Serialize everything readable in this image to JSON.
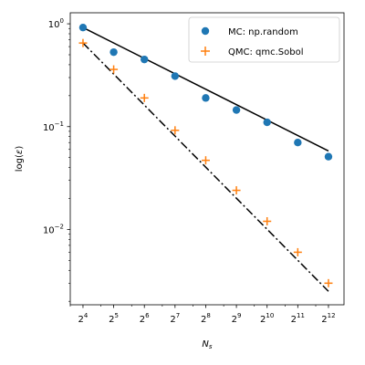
{
  "chart_data": {
    "type": "scatter",
    "title": "",
    "xlabel": "N",
    "xlabel_subscript": "s",
    "ylabel_prefix": "log(",
    "ylabel_symbol": "ε",
    "ylabel_suffix": ")",
    "x_scale": "log2",
    "y_scale": "log10",
    "xlim": [
      12.0,
      5820.0
    ],
    "ylim": [
      0.00185,
      1.28
    ],
    "grid": false,
    "legend_position": "top-right",
    "x_ticks": [
      {
        "base": "2",
        "exp": "4",
        "value": 16
      },
      {
        "base": "2",
        "exp": "5",
        "value": 32
      },
      {
        "base": "2",
        "exp": "6",
        "value": 64
      },
      {
        "base": "2",
        "exp": "7",
        "value": 128
      },
      {
        "base": "2",
        "exp": "8",
        "value": 256
      },
      {
        "base": "2",
        "exp": "9",
        "value": 512
      },
      {
        "base": "2",
        "exp": "10",
        "value": 1024
      },
      {
        "base": "2",
        "exp": "11",
        "value": 2048
      },
      {
        "base": "2",
        "exp": "12",
        "value": 4096
      }
    ],
    "y_ticks": [
      {
        "base": "10",
        "exp": "0",
        "value": 1
      },
      {
        "base": "10",
        "exp": "−1",
        "value": 0.1
      },
      {
        "base": "10",
        "exp": "−2",
        "value": 0.01
      }
    ],
    "series": [
      {
        "name": "MC: np.random",
        "marker": "circle",
        "color": "#1f77b4",
        "x": [
          16,
          32,
          64,
          128,
          256,
          512,
          1024,
          2048,
          4096
        ],
        "y": [
          0.92,
          0.53,
          0.45,
          0.31,
          0.19,
          0.145,
          0.11,
          0.07,
          0.051
        ]
      },
      {
        "name": "QMC: qmc.Sobol",
        "marker": "plus",
        "color": "#ff7f0e",
        "x": [
          16,
          32,
          64,
          128,
          256,
          512,
          1024,
          2048,
          4096
        ],
        "y": [
          0.65,
          0.36,
          0.19,
          0.092,
          0.047,
          0.024,
          0.012,
          0.006,
          0.003
        ]
      }
    ],
    "fit_lines": [
      {
        "style": "solid",
        "color": "#000000",
        "x": [
          16,
          4096
        ],
        "y": [
          0.92,
          0.058
        ]
      },
      {
        "style": "dashdot",
        "color": "#000000",
        "x": [
          16,
          4096
        ],
        "y": [
          0.65,
          0.0025
        ]
      }
    ]
  }
}
